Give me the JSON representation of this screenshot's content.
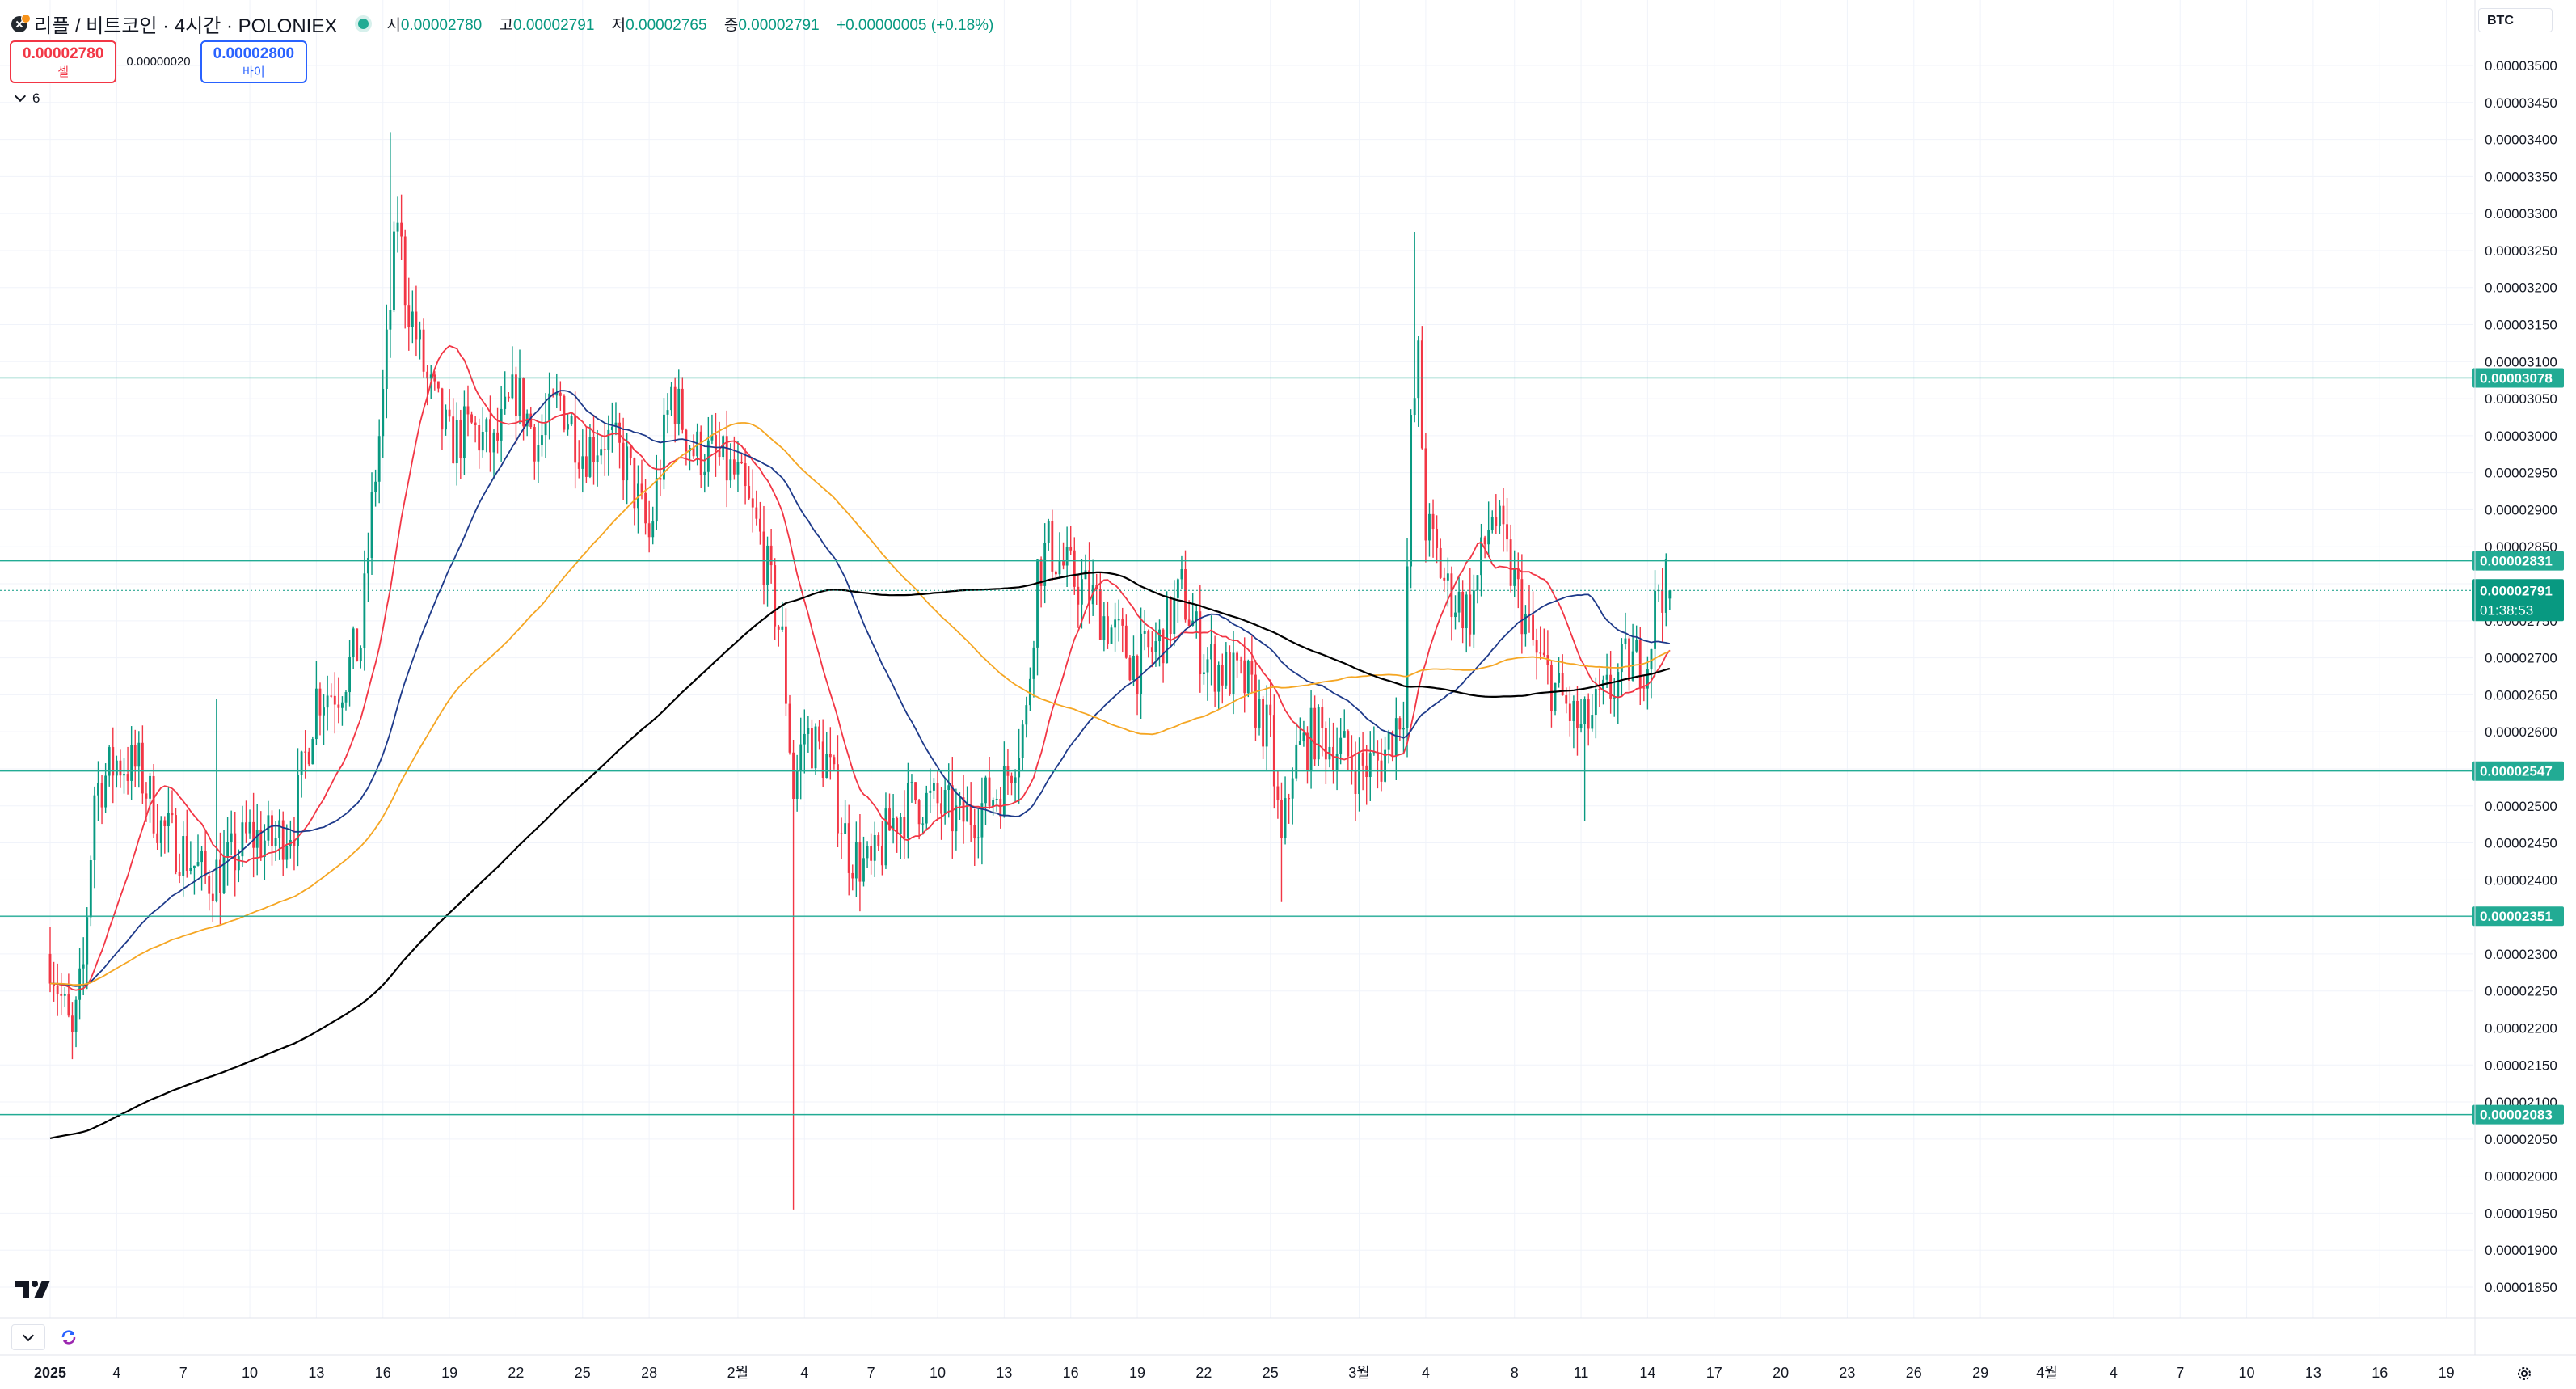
{
  "header": {
    "title": "리플 / 비트코인 · 4시간 · POLONIEX",
    "ohlc": [
      {
        "label": "시",
        "value": "0.00002780"
      },
      {
        "label": "고",
        "value": "0.00002791"
      },
      {
        "label": "저",
        "value": "0.00002765"
      },
      {
        "label": "종",
        "value": "0.00002791"
      }
    ],
    "change": "+0.00000005 (+0.18%)"
  },
  "trade": {
    "sell_price": "0.00002780",
    "sell_label": "셀",
    "spread": "0.00000020",
    "buy_price": "0.00002800",
    "buy_label": "바이"
  },
  "indicators": {
    "count": "6"
  },
  "currency": "BTC",
  "colors": {
    "up": "#089981",
    "down": "#f23645",
    "ma_red": "#f23645",
    "ma_blue": "#1e3a8a",
    "ma_orange": "#f5a623",
    "ma_black": "#000000",
    "level_line": "#22ab94",
    "label_bg": "#22ab94"
  },
  "chart_data": {
    "type": "candlestick",
    "price_axis": {
      "min": 1.83e-05,
      "max": 3.51e-05,
      "ticks": [
        "0.00003500",
        "0.00003450",
        "0.00003400",
        "0.00003350",
        "0.00003300",
        "0.00003250",
        "0.00003200",
        "0.00003150",
        "0.00003100",
        "0.00003050",
        "0.00003000",
        "0.00002950",
        "0.00002900",
        "0.00002850",
        "0.00002800",
        "0.00002750",
        "0.00002700",
        "0.00002650",
        "0.00002600",
        "0.00002550",
        "0.00002500",
        "0.00002450",
        "0.00002400",
        "0.00002350",
        "0.00002300",
        "0.00002250",
        "0.00002200",
        "0.00002150",
        "0.00002100",
        "0.00002050",
        "0.00002000",
        "0.00001950",
        "0.00001900",
        "0.00001850"
      ]
    },
    "time_axis": {
      "first_day": "2025-01-01",
      "last_day": "2025-04-20",
      "labels": [
        {
          "date": "2025-01-01",
          "text": "2025",
          "bold": true
        },
        {
          "date": "2025-01-04",
          "text": "4"
        },
        {
          "date": "2025-01-07",
          "text": "7"
        },
        {
          "date": "2025-01-10",
          "text": "10"
        },
        {
          "date": "2025-01-13",
          "text": "13"
        },
        {
          "date": "2025-01-16",
          "text": "16"
        },
        {
          "date": "2025-01-19",
          "text": "19"
        },
        {
          "date": "2025-01-22",
          "text": "22"
        },
        {
          "date": "2025-01-25",
          "text": "25"
        },
        {
          "date": "2025-01-28",
          "text": "28"
        },
        {
          "date": "2025-02-01",
          "text": "2월"
        },
        {
          "date": "2025-02-04",
          "text": "4"
        },
        {
          "date": "2025-02-07",
          "text": "7"
        },
        {
          "date": "2025-02-10",
          "text": "10"
        },
        {
          "date": "2025-02-13",
          "text": "13"
        },
        {
          "date": "2025-02-16",
          "text": "16"
        },
        {
          "date": "2025-02-19",
          "text": "19"
        },
        {
          "date": "2025-02-22",
          "text": "22"
        },
        {
          "date": "2025-02-25",
          "text": "25"
        },
        {
          "date": "2025-03-01",
          "text": "3월"
        },
        {
          "date": "2025-03-04",
          "text": "4"
        },
        {
          "date": "2025-03-08",
          "text": "8"
        },
        {
          "date": "2025-03-11",
          "text": "11"
        },
        {
          "date": "2025-03-14",
          "text": "14"
        },
        {
          "date": "2025-03-17",
          "text": "17"
        },
        {
          "date": "2025-03-20",
          "text": "20"
        },
        {
          "date": "2025-03-23",
          "text": "23"
        },
        {
          "date": "2025-03-26",
          "text": "26"
        },
        {
          "date": "2025-03-29",
          "text": "29"
        },
        {
          "date": "2025-04-01",
          "text": "4월"
        },
        {
          "date": "2025-04-04",
          "text": "4"
        },
        {
          "date": "2025-04-07",
          "text": "7"
        },
        {
          "date": "2025-04-10",
          "text": "10"
        },
        {
          "date": "2025-04-13",
          "text": "13"
        },
        {
          "date": "2025-04-16",
          "text": "16"
        },
        {
          "date": "2025-04-19",
          "text": "19"
        }
      ]
    },
    "price_path": {
      "description_of_source": "approximate closing-price path (4h candles are generated from it)",
      "points": [
        [
          "2025-01-01",
          2.3e-05
        ],
        [
          "2025-01-02",
          2.18e-05
        ],
        [
          "2025-01-02T12",
          2.28e-05
        ],
        [
          "2025-01-03",
          2.52e-05
        ],
        [
          "2025-01-04",
          2.56e-05
        ],
        [
          "2025-01-05",
          2.55e-05
        ],
        [
          "2025-01-06",
          2.47e-05
        ],
        [
          "2025-01-07",
          2.44e-05
        ],
        [
          "2025-01-08",
          2.4e-05
        ],
        [
          "2025-01-09",
          2.42e-05
        ],
        [
          "2025-01-10",
          2.46e-05
        ],
        [
          "2025-01-11",
          2.45e-05
        ],
        [
          "2025-01-12",
          2.48e-05
        ],
        [
          "2025-01-13",
          2.65e-05
        ],
        [
          "2025-01-14",
          2.66e-05
        ],
        [
          "2025-01-15",
          2.72e-05
        ],
        [
          "2025-01-15T12",
          2.9e-05
        ],
        [
          "2025-01-16",
          3.05e-05
        ],
        [
          "2025-01-16T16",
          3.3e-05
        ],
        [
          "2025-01-17",
          3.2e-05
        ],
        [
          "2025-01-18",
          3.07e-05
        ],
        [
          "2025-01-19",
          2.99e-05
        ],
        [
          "2025-01-20",
          3.01e-05
        ],
        [
          "2025-01-21",
          2.98e-05
        ],
        [
          "2025-01-22",
          3.06e-05
        ],
        [
          "2025-01-23",
          2.99e-05
        ],
        [
          "2025-01-24",
          3.05e-05
        ],
        [
          "2025-01-25",
          2.98e-05
        ],
        [
          "2025-01-26",
          3e-05
        ],
        [
          "2025-01-27",
          2.96e-05
        ],
        [
          "2025-01-28",
          2.86e-05
        ],
        [
          "2025-01-29",
          3.06e-05
        ],
        [
          "2025-01-30",
          2.98e-05
        ],
        [
          "2025-01-31",
          2.97e-05
        ],
        [
          "2025-02-01",
          2.94e-05
        ],
        [
          "2025-02-02",
          2.86e-05
        ],
        [
          "2025-02-03",
          2.72e-05
        ],
        [
          "2025-02-03T12",
          2.52e-05
        ],
        [
          "2025-02-04",
          2.6e-05
        ],
        [
          "2025-02-05",
          2.56e-05
        ],
        [
          "2025-02-06",
          2.44e-05
        ],
        [
          "2025-02-07",
          2.41e-05
        ],
        [
          "2025-02-08",
          2.48e-05
        ],
        [
          "2025-02-09",
          2.51e-05
        ],
        [
          "2025-02-10",
          2.5e-05
        ],
        [
          "2025-02-11",
          2.48e-05
        ],
        [
          "2025-02-12",
          2.5e-05
        ],
        [
          "2025-02-13",
          2.53e-05
        ],
        [
          "2025-02-14",
          2.62e-05
        ],
        [
          "2025-02-14T12",
          2.82e-05
        ],
        [
          "2025-02-15",
          2.85e-05
        ],
        [
          "2025-02-16",
          2.81e-05
        ],
        [
          "2025-02-17",
          2.78e-05
        ],
        [
          "2025-02-18",
          2.73e-05
        ],
        [
          "2025-02-19",
          2.69e-05
        ],
        [
          "2025-02-20",
          2.72e-05
        ],
        [
          "2025-02-21",
          2.79e-05
        ],
        [
          "2025-02-22",
          2.7e-05
        ],
        [
          "2025-02-23",
          2.68e-05
        ],
        [
          "2025-02-24",
          2.66e-05
        ],
        [
          "2025-02-25",
          2.59e-05
        ],
        [
          "2025-02-25T12",
          2.44e-05
        ],
        [
          "2025-02-26",
          2.56e-05
        ],
        [
          "2025-02-27",
          2.6e-05
        ],
        [
          "2025-02-28",
          2.58e-05
        ],
        [
          "2025-03-01",
          2.55e-05
        ],
        [
          "2025-03-02",
          2.56e-05
        ],
        [
          "2025-03-03",
          2.64e-05
        ],
        [
          "2025-03-03T08",
          3e-05
        ],
        [
          "2025-03-03T16",
          3.1e-05
        ],
        [
          "2025-03-04",
          2.88e-05
        ],
        [
          "2025-03-05",
          2.79e-05
        ],
        [
          "2025-03-06",
          2.76e-05
        ],
        [
          "2025-03-07",
          2.9e-05
        ],
        [
          "2025-03-08",
          2.8e-05
        ],
        [
          "2025-03-09",
          2.7e-05
        ],
        [
          "2025-03-10",
          2.65e-05
        ],
        [
          "2025-03-11",
          2.6e-05
        ],
        [
          "2025-03-12",
          2.64e-05
        ],
        [
          "2025-03-13",
          2.69e-05
        ],
        [
          "2025-03-14",
          2.7e-05
        ],
        [
          "2025-03-14T12",
          2.8e-05
        ],
        [
          "2025-03-15",
          2.791e-05
        ]
      ],
      "spikes": [
        {
          "date": "2025-01-16T08",
          "high": 3.41e-05
        },
        {
          "date": "2025-02-03T12",
          "low": 1.955e-05
        },
        {
          "date": "2025-03-03T12",
          "high": 3.275e-05
        },
        {
          "date": "2025-02-25T12",
          "low": 2.37e-05
        },
        {
          "date": "2025-03-11T04",
          "low": 2.48e-05
        },
        {
          "date": "2025-01-08T12",
          "high": 2.645e-05
        },
        {
          "date": "2025-01-08T16",
          "low": 2.34e-05
        }
      ]
    },
    "moving_averages": [
      {
        "color_key": "ma_red",
        "period": 20
      },
      {
        "color_key": "ma_blue",
        "period": 50
      },
      {
        "color_key": "ma_orange",
        "period": 100
      },
      {
        "color_key": "ma_black",
        "period": 200,
        "seed": 2.05e-05
      }
    ],
    "levels": [
      {
        "price": 3.078e-05,
        "label": "0.00003078"
      },
      {
        "price": 2.831e-05,
        "label": "0.00002831"
      },
      {
        "price": 2.547e-05,
        "label": "0.00002547"
      },
      {
        "price": 2.351e-05,
        "label": "0.00002351"
      },
      {
        "price": 2.083e-05,
        "label": "0.00002083"
      }
    ],
    "current_price": {
      "price": 2.791e-05,
      "label": "0.00002791",
      "countdown": "01:38:53"
    }
  }
}
